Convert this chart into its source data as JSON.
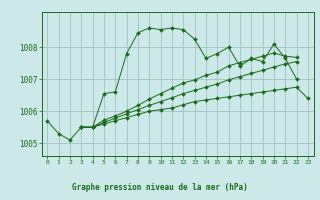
{
  "xlabel": "Graphe pression niveau de la mer (hPa)",
  "bg_color": "#cce8e8",
  "grid_color": "#99bbbb",
  "line_color": "#1a6b1a",
  "text_color": "#1a6b1a",
  "ylim": [
    1004.6,
    1009.1
  ],
  "xlim": [
    -0.5,
    23.5
  ],
  "yticks": [
    1005,
    1006,
    1007,
    1008
  ],
  "series": [
    [
      1005.7,
      1005.3,
      1005.1,
      1005.5,
      1005.5,
      1006.55,
      1006.6,
      1007.8,
      1008.45,
      1008.6,
      1008.55,
      1008.6,
      1008.55,
      1008.25,
      1007.65,
      1007.8,
      1008.0,
      1007.4,
      1007.65,
      1007.55,
      1008.1,
      1007.65,
      1007.0,
      null
    ],
    [
      null,
      null,
      null,
      1005.5,
      1005.5,
      1005.6,
      1005.7,
      1005.8,
      1005.9,
      1006.0,
      1006.05,
      1006.1,
      1006.2,
      1006.3,
      1006.35,
      1006.4,
      1006.45,
      1006.5,
      1006.55,
      1006.6,
      1006.65,
      1006.7,
      1006.75,
      1006.4
    ],
    [
      null,
      null,
      null,
      1005.5,
      1005.5,
      1005.65,
      1005.78,
      1005.92,
      1006.05,
      1006.18,
      1006.3,
      1006.42,
      1006.55,
      1006.65,
      1006.75,
      1006.85,
      1006.98,
      1007.08,
      1007.18,
      1007.28,
      1007.38,
      1007.48,
      1007.55,
      null
    ],
    [
      null,
      null,
      null,
      1005.5,
      1005.5,
      1005.72,
      1005.85,
      1006.0,
      1006.18,
      1006.38,
      1006.55,
      1006.72,
      1006.88,
      1006.98,
      1007.12,
      1007.22,
      1007.42,
      1007.52,
      1007.62,
      1007.72,
      1007.82,
      1007.72,
      1007.68,
      null
    ]
  ]
}
